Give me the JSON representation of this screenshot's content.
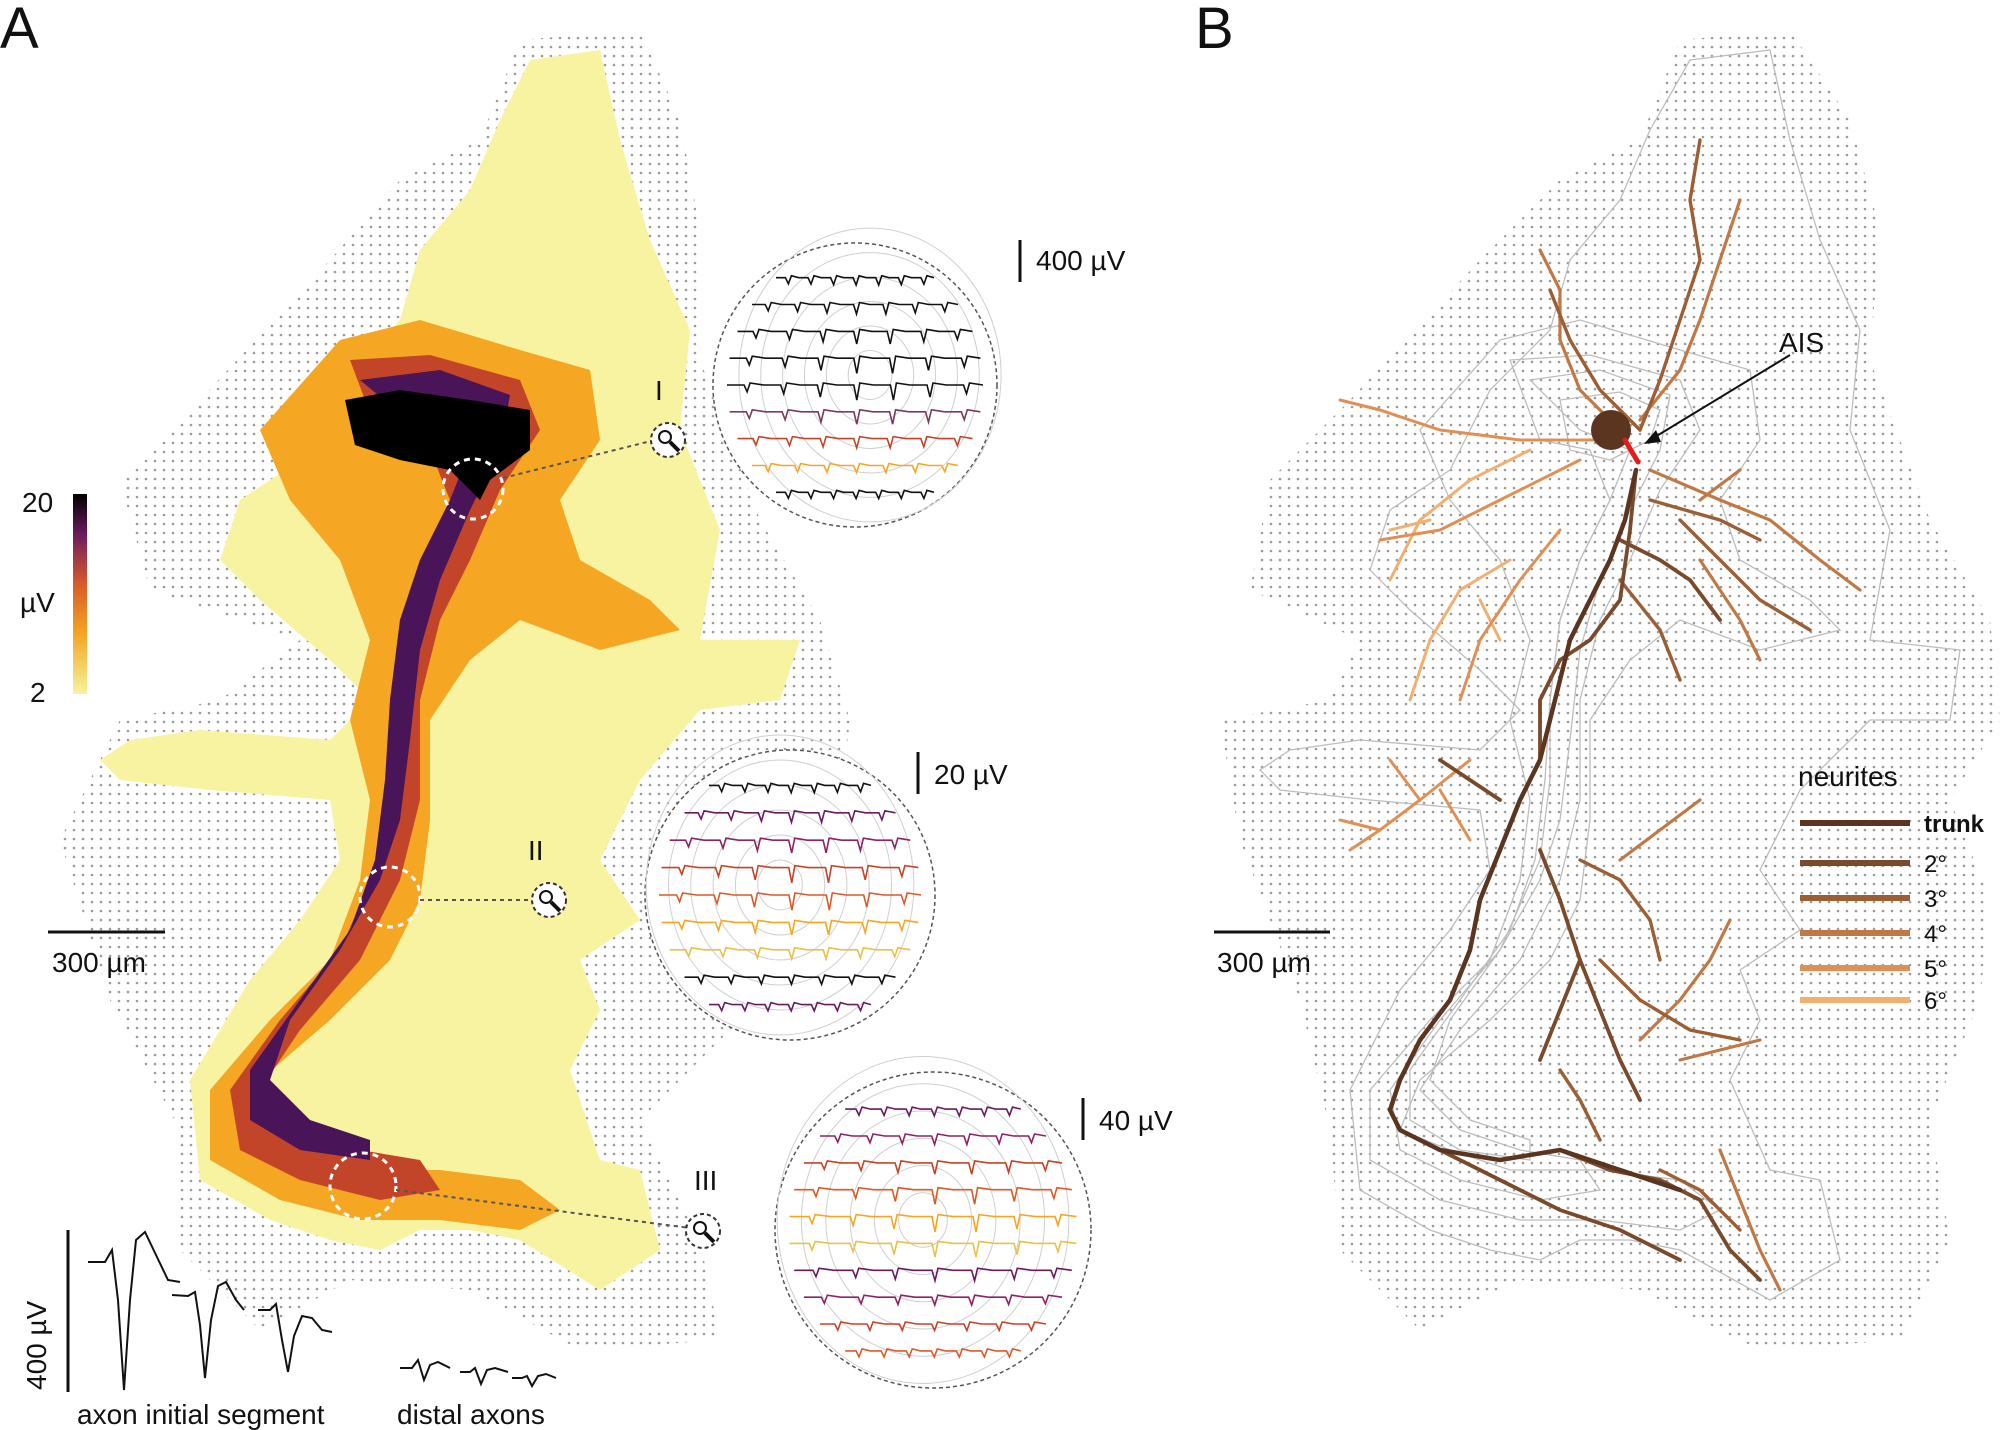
{
  "panels": {
    "a": {
      "letter": "A",
      "colorbar": {
        "max_label": "20",
        "unit_label": "µV",
        "min_label": "2"
      },
      "scale_bar_label": "300 µm",
      "insets": [
        {
          "roman": "I",
          "amplitude_label": "400 µV"
        },
        {
          "roman": "II",
          "amplitude_label": "20 µV"
        },
        {
          "roman": "III",
          "amplitude_label": "40 µV"
        }
      ],
      "waveform_panel": {
        "amplitude_label": "400 µV",
        "ais_label": "axon initial segment",
        "distal_label": "distal axons"
      }
    },
    "b": {
      "letter": "B",
      "ais_label": "AIS",
      "scale_bar_label": "300 µm",
      "legend": {
        "title": "neurites",
        "items": [
          {
            "label": "trunk",
            "color": "#5b3520"
          },
          {
            "label": "2°",
            "color": "#7a4a2c"
          },
          {
            "label": "3°",
            "color": "#9c5e35"
          },
          {
            "label": "4°",
            "color": "#c07845"
          },
          {
            "label": "5°",
            "color": "#e08f55"
          },
          {
            "label": "6°",
            "color": "#f2b070"
          }
        ]
      }
    }
  },
  "colors": {
    "heat_low": "#f7f3a0",
    "heat_mid": "#f5a623",
    "heat_high": "#c2452a",
    "heat_peak": "#4a1458",
    "heat_max": "#000000",
    "contour": "#bdbdbd",
    "ais_marker": "#e41a1c",
    "soma": "#5b3520"
  }
}
